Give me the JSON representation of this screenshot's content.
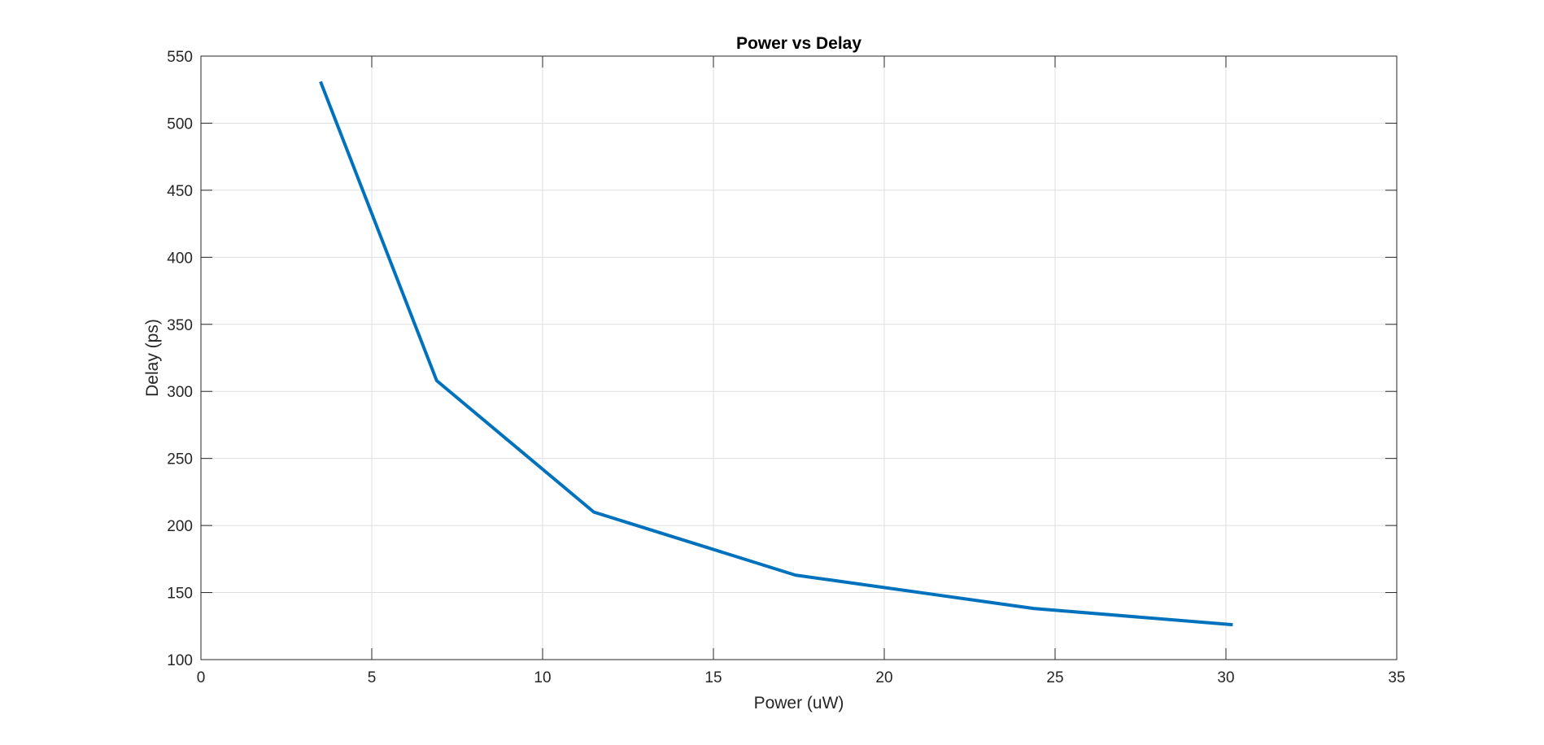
{
  "chart_data": {
    "type": "line",
    "title": "Power vs Delay",
    "xlabel": "Power (uW)",
    "ylabel": "Delay (ps)",
    "xlim": [
      0,
      35
    ],
    "ylim": [
      100,
      550
    ],
    "xticks": [
      0,
      5,
      10,
      15,
      20,
      25,
      30,
      35
    ],
    "yticks": [
      100,
      150,
      200,
      250,
      300,
      350,
      400,
      450,
      500,
      550
    ],
    "grid": true,
    "series": [
      {
        "color": "#0072BD",
        "x": [
          3.5,
          6.9,
          11.5,
          17.4,
          24.4,
          30.2
        ],
        "y": [
          531,
          308,
          210,
          163,
          138,
          126
        ]
      }
    ]
  }
}
